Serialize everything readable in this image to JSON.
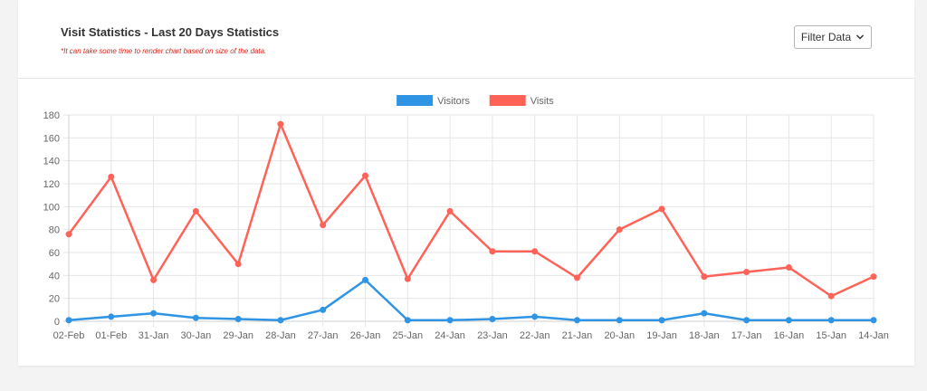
{
  "header": {
    "title": "Visit Statistics - Last 20 Days Statistics",
    "subtitle": "*It can take some time to render chart based on size of the data.",
    "filter_label": "Filter Data",
    "filter_icon": "chevron-down-icon"
  },
  "chart_data": {
    "type": "line",
    "categories": [
      "02-Feb",
      "01-Feb",
      "31-Jan",
      "30-Jan",
      "29-Jan",
      "28-Jan",
      "27-Jan",
      "26-Jan",
      "25-Jan",
      "24-Jan",
      "23-Jan",
      "22-Jan",
      "21-Jan",
      "20-Jan",
      "19-Jan",
      "18-Jan",
      "17-Jan",
      "16-Jan",
      "15-Jan",
      "14-Jan"
    ],
    "series": [
      {
        "name": "Visitors",
        "color": "#2f94e4",
        "values": [
          1,
          4,
          7,
          3,
          2,
          1,
          10,
          36,
          1,
          1,
          2,
          4,
          1,
          1,
          1,
          7,
          1,
          1,
          1,
          1
        ]
      },
      {
        "name": "Visits",
        "color": "#ff6358",
        "values": [
          76,
          126,
          36,
          96,
          50,
          172,
          84,
          127,
          37,
          96,
          61,
          61,
          38,
          80,
          98,
          39,
          43,
          47,
          22,
          39
        ]
      }
    ],
    "ylim": [
      0,
      180
    ],
    "yticks": [
      0,
      20,
      40,
      60,
      80,
      100,
      120,
      140,
      160,
      180
    ],
    "grid": true,
    "legend_position": "top-center"
  }
}
